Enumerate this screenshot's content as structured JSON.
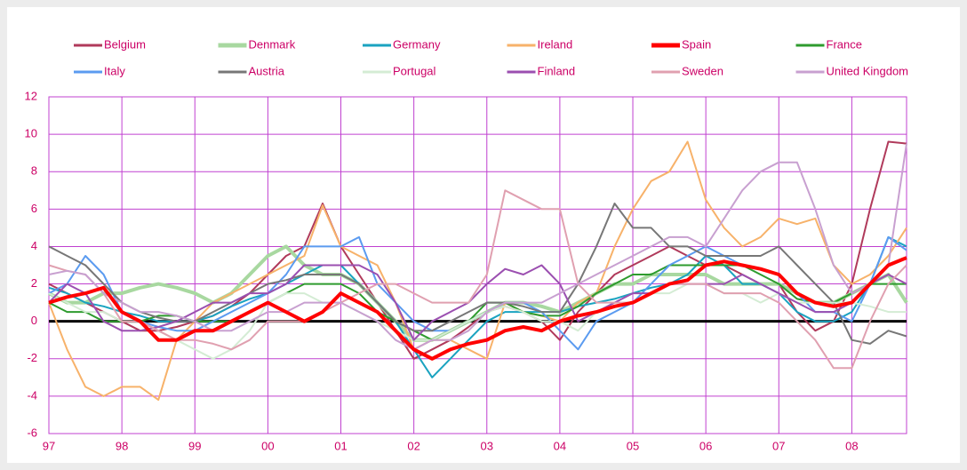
{
  "chart_data": {
    "type": "line",
    "grid": true,
    "legend": "top",
    "zero_line": true,
    "categories": [
      "97",
      null,
      null,
      null,
      "98",
      null,
      null,
      null,
      "99",
      null,
      null,
      null,
      "00",
      null,
      null,
      null,
      "01",
      null,
      null,
      null,
      "02",
      null,
      null,
      null,
      "03",
      null,
      null,
      null,
      "04",
      null,
      null,
      null,
      "05",
      null,
      null,
      null,
      "06",
      null,
      null,
      null,
      "07",
      null,
      null,
      null,
      "08",
      null,
      null,
      null
    ],
    "ylim": [
      -6,
      12
    ],
    "yticks": [
      -6,
      -4,
      -2,
      0,
      2,
      4,
      6,
      8,
      10,
      12
    ],
    "series": [
      {
        "name": "Belgium",
        "color": "#b03a5b",
        "values": [
          2,
          1.5,
          1,
          0.5,
          0,
          -0.5,
          -0.5,
          -0.3,
          0,
          0.3,
          0.8,
          1.5,
          2.5,
          3.5,
          4,
          6.3,
          4,
          2.5,
          1,
          -0.5,
          -2,
          -1.5,
          -1,
          -0.3,
          0.5,
          0.8,
          0.5,
          0,
          -1,
          0.5,
          1.5,
          2.5,
          3,
          3.5,
          4,
          3.5,
          3,
          3,
          2.5,
          2,
          2,
          0.5,
          -0.5,
          0,
          2,
          6,
          9.6,
          9.5
        ]
      },
      {
        "name": "Denmark",
        "color": "#a8d8a0",
        "values": [
          1.5,
          1,
          1,
          1.5,
          1.5,
          1.8,
          2,
          1.8,
          1.5,
          1,
          1.5,
          2.5,
          3.5,
          4,
          3,
          2.5,
          2.5,
          2,
          1,
          0,
          -1,
          -1,
          -0.5,
          0,
          0.5,
          1,
          1,
          0.8,
          0.5,
          1,
          1.5,
          2,
          2,
          2.5,
          2.5,
          2.5,
          2.5,
          2,
          2,
          2,
          2,
          1.5,
          1,
          1,
          1.5,
          2,
          2.5,
          1
        ]
      },
      {
        "name": "Germany",
        "color": "#1aa3c0",
        "values": [
          1.8,
          1.5,
          1,
          0.8,
          0.5,
          0.3,
          0,
          0,
          0,
          0.3,
          0.8,
          1.2,
          1.5,
          2,
          2.5,
          3,
          3,
          2,
          1,
          0,
          -1.5,
          -3,
          -2,
          -1,
          0,
          0.5,
          0.5,
          0.5,
          0.5,
          0.8,
          1,
          1.2,
          1.5,
          1.8,
          2,
          2.5,
          3.5,
          3,
          2,
          2,
          1.5,
          0.5,
          0,
          0,
          0.5,
          2,
          4.5,
          4
        ]
      },
      {
        "name": "Ireland",
        "color": "#f7b26a",
        "values": [
          1,
          -1.5,
          -3.5,
          -4,
          -3.5,
          -3.5,
          -4.2,
          -1,
          0,
          1,
          1.5,
          2,
          2.5,
          3,
          3.5,
          6.2,
          4,
          3.5,
          3,
          1,
          -1.5,
          -1,
          -1,
          -1.5,
          -2,
          1,
          0.5,
          0.3,
          0,
          1,
          1.5,
          4,
          6,
          7.5,
          8,
          9.6,
          6.5,
          5,
          4,
          4.5,
          5.5,
          5.2,
          5.5,
          3,
          2,
          2.5,
          3.5,
          5
        ]
      },
      {
        "name": "Spain",
        "color": "#ff0000",
        "values": [
          1,
          1.3,
          1.5,
          1.8,
          0.5,
          0,
          -1,
          -1,
          -0.5,
          -0.5,
          0,
          0.5,
          1,
          0.5,
          0,
          0.5,
          1.5,
          1,
          0.5,
          -0.5,
          -1.5,
          -2,
          -1.5,
          -1.2,
          -1,
          -0.5,
          -0.3,
          -0.5,
          0,
          0.3,
          0.5,
          0.8,
          1,
          1.5,
          2,
          2.2,
          3,
          3.2,
          3,
          2.8,
          2.5,
          1.5,
          1,
          0.8,
          1,
          2,
          3,
          3.4
        ]
      },
      {
        "name": "France",
        "color": "#2e9b2e",
        "values": [
          1,
          0.5,
          0.5,
          0,
          0,
          0,
          0.3,
          0.3,
          0,
          0,
          0,
          0.5,
          1,
          1.5,
          2,
          2,
          2,
          1.5,
          0.5,
          0,
          -0.5,
          -1,
          -0.5,
          0,
          1,
          1,
          0.5,
          0.3,
          0.3,
          0.8,
          1.5,
          2,
          2.5,
          2.5,
          3,
          3,
          3,
          3,
          3,
          2.5,
          2,
          1.2,
          1,
          1,
          1.5,
          2,
          2,
          2
        ]
      },
      {
        "name": "Italy",
        "color": "#5b9bf0",
        "values": [
          1.5,
          2,
          3.5,
          2.5,
          0.5,
          0,
          -0.3,
          -0.5,
          -0.5,
          0,
          0.5,
          1,
          1.5,
          2.5,
          4,
          4,
          4,
          4.5,
          2,
          1,
          0,
          -0.5,
          -0.5,
          0,
          0.5,
          1,
          1,
          0.5,
          -0.5,
          -1.5,
          0,
          0.5,
          1,
          2,
          3,
          3.5,
          4,
          3.5,
          3,
          2.8,
          2.5,
          1.5,
          0.5,
          0.5,
          0,
          2,
          4.5,
          3.8
        ]
      },
      {
        "name": "Austria",
        "color": "#777777",
        "values": [
          4,
          3.5,
          3,
          2,
          1,
          0.5,
          0.2,
          0,
          0,
          0.5,
          1,
          1.5,
          2,
          2.2,
          2.5,
          2.5,
          2.5,
          2,
          1,
          0,
          -0.5,
          -0.5,
          0,
          0.5,
          1,
          1,
          0.8,
          0.5,
          0.5,
          2,
          4,
          6.3,
          5,
          5,
          4,
          4,
          3.5,
          3.5,
          3.5,
          3.5,
          4,
          3,
          2,
          1,
          -1,
          -1.2,
          -0.5,
          -0.8
        ]
      },
      {
        "name": "Portugal",
        "color": "#d4ecd4",
        "values": [
          1.5,
          1,
          0.5,
          0.5,
          0,
          0,
          -0.5,
          -1,
          -1.5,
          -2,
          -1.5,
          -0.5,
          1,
          1.5,
          1.5,
          1,
          1,
          0.5,
          0,
          -0.5,
          -1,
          -1,
          -0.5,
          0,
          0.5,
          0.8,
          0.5,
          0,
          0,
          -0.5,
          0.5,
          1,
          1,
          1.5,
          1.5,
          2,
          2,
          1.5,
          1.5,
          1,
          1.5,
          1,
          1,
          1,
          1,
          0.8,
          0.5,
          0.5
        ]
      },
      {
        "name": "Finland",
        "color": "#9b4fb0",
        "values": [
          1,
          2,
          1.5,
          0,
          -0.5,
          -0.5,
          -0.3,
          0,
          0.5,
          1,
          1,
          1.5,
          1.5,
          2,
          3,
          3,
          3,
          3,
          2.5,
          1,
          -1,
          0,
          0.5,
          1,
          2,
          2.8,
          2.5,
          3,
          2,
          0,
          0.5,
          1,
          1.5,
          1.5,
          2,
          2,
          2,
          2,
          2.5,
          2,
          1.5,
          1,
          0.5,
          0.5,
          1,
          2,
          2.5,
          2
        ]
      },
      {
        "name": "Sweden",
        "color": "#e0a0b0",
        "values": [
          3,
          2.7,
          2.5,
          1.5,
          0,
          0,
          -0.5,
          -1,
          -1,
          -1.2,
          -1.5,
          -1,
          0,
          0,
          0,
          0.5,
          1,
          1.5,
          2,
          2,
          1.5,
          1,
          1,
          1,
          2.5,
          7,
          6.5,
          6,
          6,
          2,
          1,
          1,
          1,
          1.5,
          2,
          2,
          2,
          1.5,
          1.5,
          1.5,
          1,
          0,
          -1,
          -2.5,
          -2.5,
          0,
          2,
          3
        ]
      },
      {
        "name": "United Kingdom",
        "color": "#c8a0d0",
        "values": [
          2.5,
          2.7,
          2.5,
          1.5,
          1,
          0.5,
          0.5,
          0.3,
          0,
          -0.5,
          -0.5,
          0,
          0.5,
          0.5,
          1,
          1,
          1,
          0.5,
          0,
          -1,
          -1.5,
          -1,
          -1,
          -0.5,
          0.5,
          1,
          1,
          1,
          1.5,
          2,
          2.5,
          3,
          3.5,
          4,
          4.5,
          4.5,
          4,
          5.5,
          7,
          8,
          8.5,
          8.5,
          6,
          3,
          1.5,
          2,
          3,
          9.5
        ]
      }
    ]
  }
}
